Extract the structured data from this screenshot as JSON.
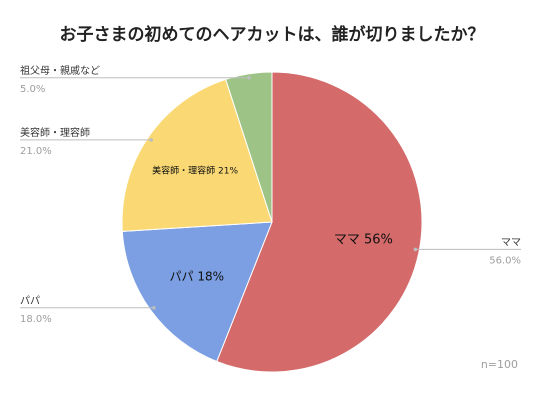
{
  "chart_data": {
    "type": "pie",
    "title": "お子さまの初めてのヘアカットは、誰が切りましたか？",
    "slices": [
      {
        "name": "ママ",
        "value": 56.0,
        "percent_text": "56.0%",
        "inner_label": "ママ 56%",
        "color": "#d46a6a"
      },
      {
        "name": "パパ",
        "value": 18.0,
        "percent_text": "18.0%",
        "inner_label": "パパ 18%",
        "color": "#7b9fe2"
      },
      {
        "name": "美容師・理容師",
        "value": 21.0,
        "percent_text": "21.0%",
        "inner_label": "美容師・理容師 21%",
        "color": "#fad975"
      },
      {
        "name": "祖父母・親戚など",
        "value": 5.0,
        "percent_text": "5.0%",
        "inner_label": "",
        "color": "#9dc486"
      }
    ],
    "note": "n=100",
    "legend": "none"
  }
}
